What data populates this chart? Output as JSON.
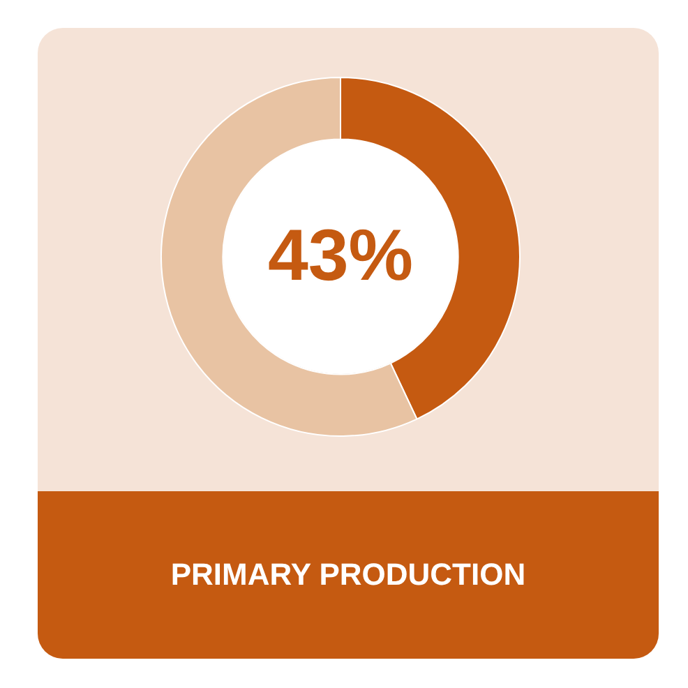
{
  "chart_data": {
    "type": "donut",
    "title": "PRIMARY PRODUCTION",
    "categories": [
      null,
      null
    ],
    "values": [
      43,
      57
    ],
    "colors": [
      "#c55a11",
      "#e8c3a3"
    ],
    "value_labels": [
      "43%",
      null
    ]
  }
}
